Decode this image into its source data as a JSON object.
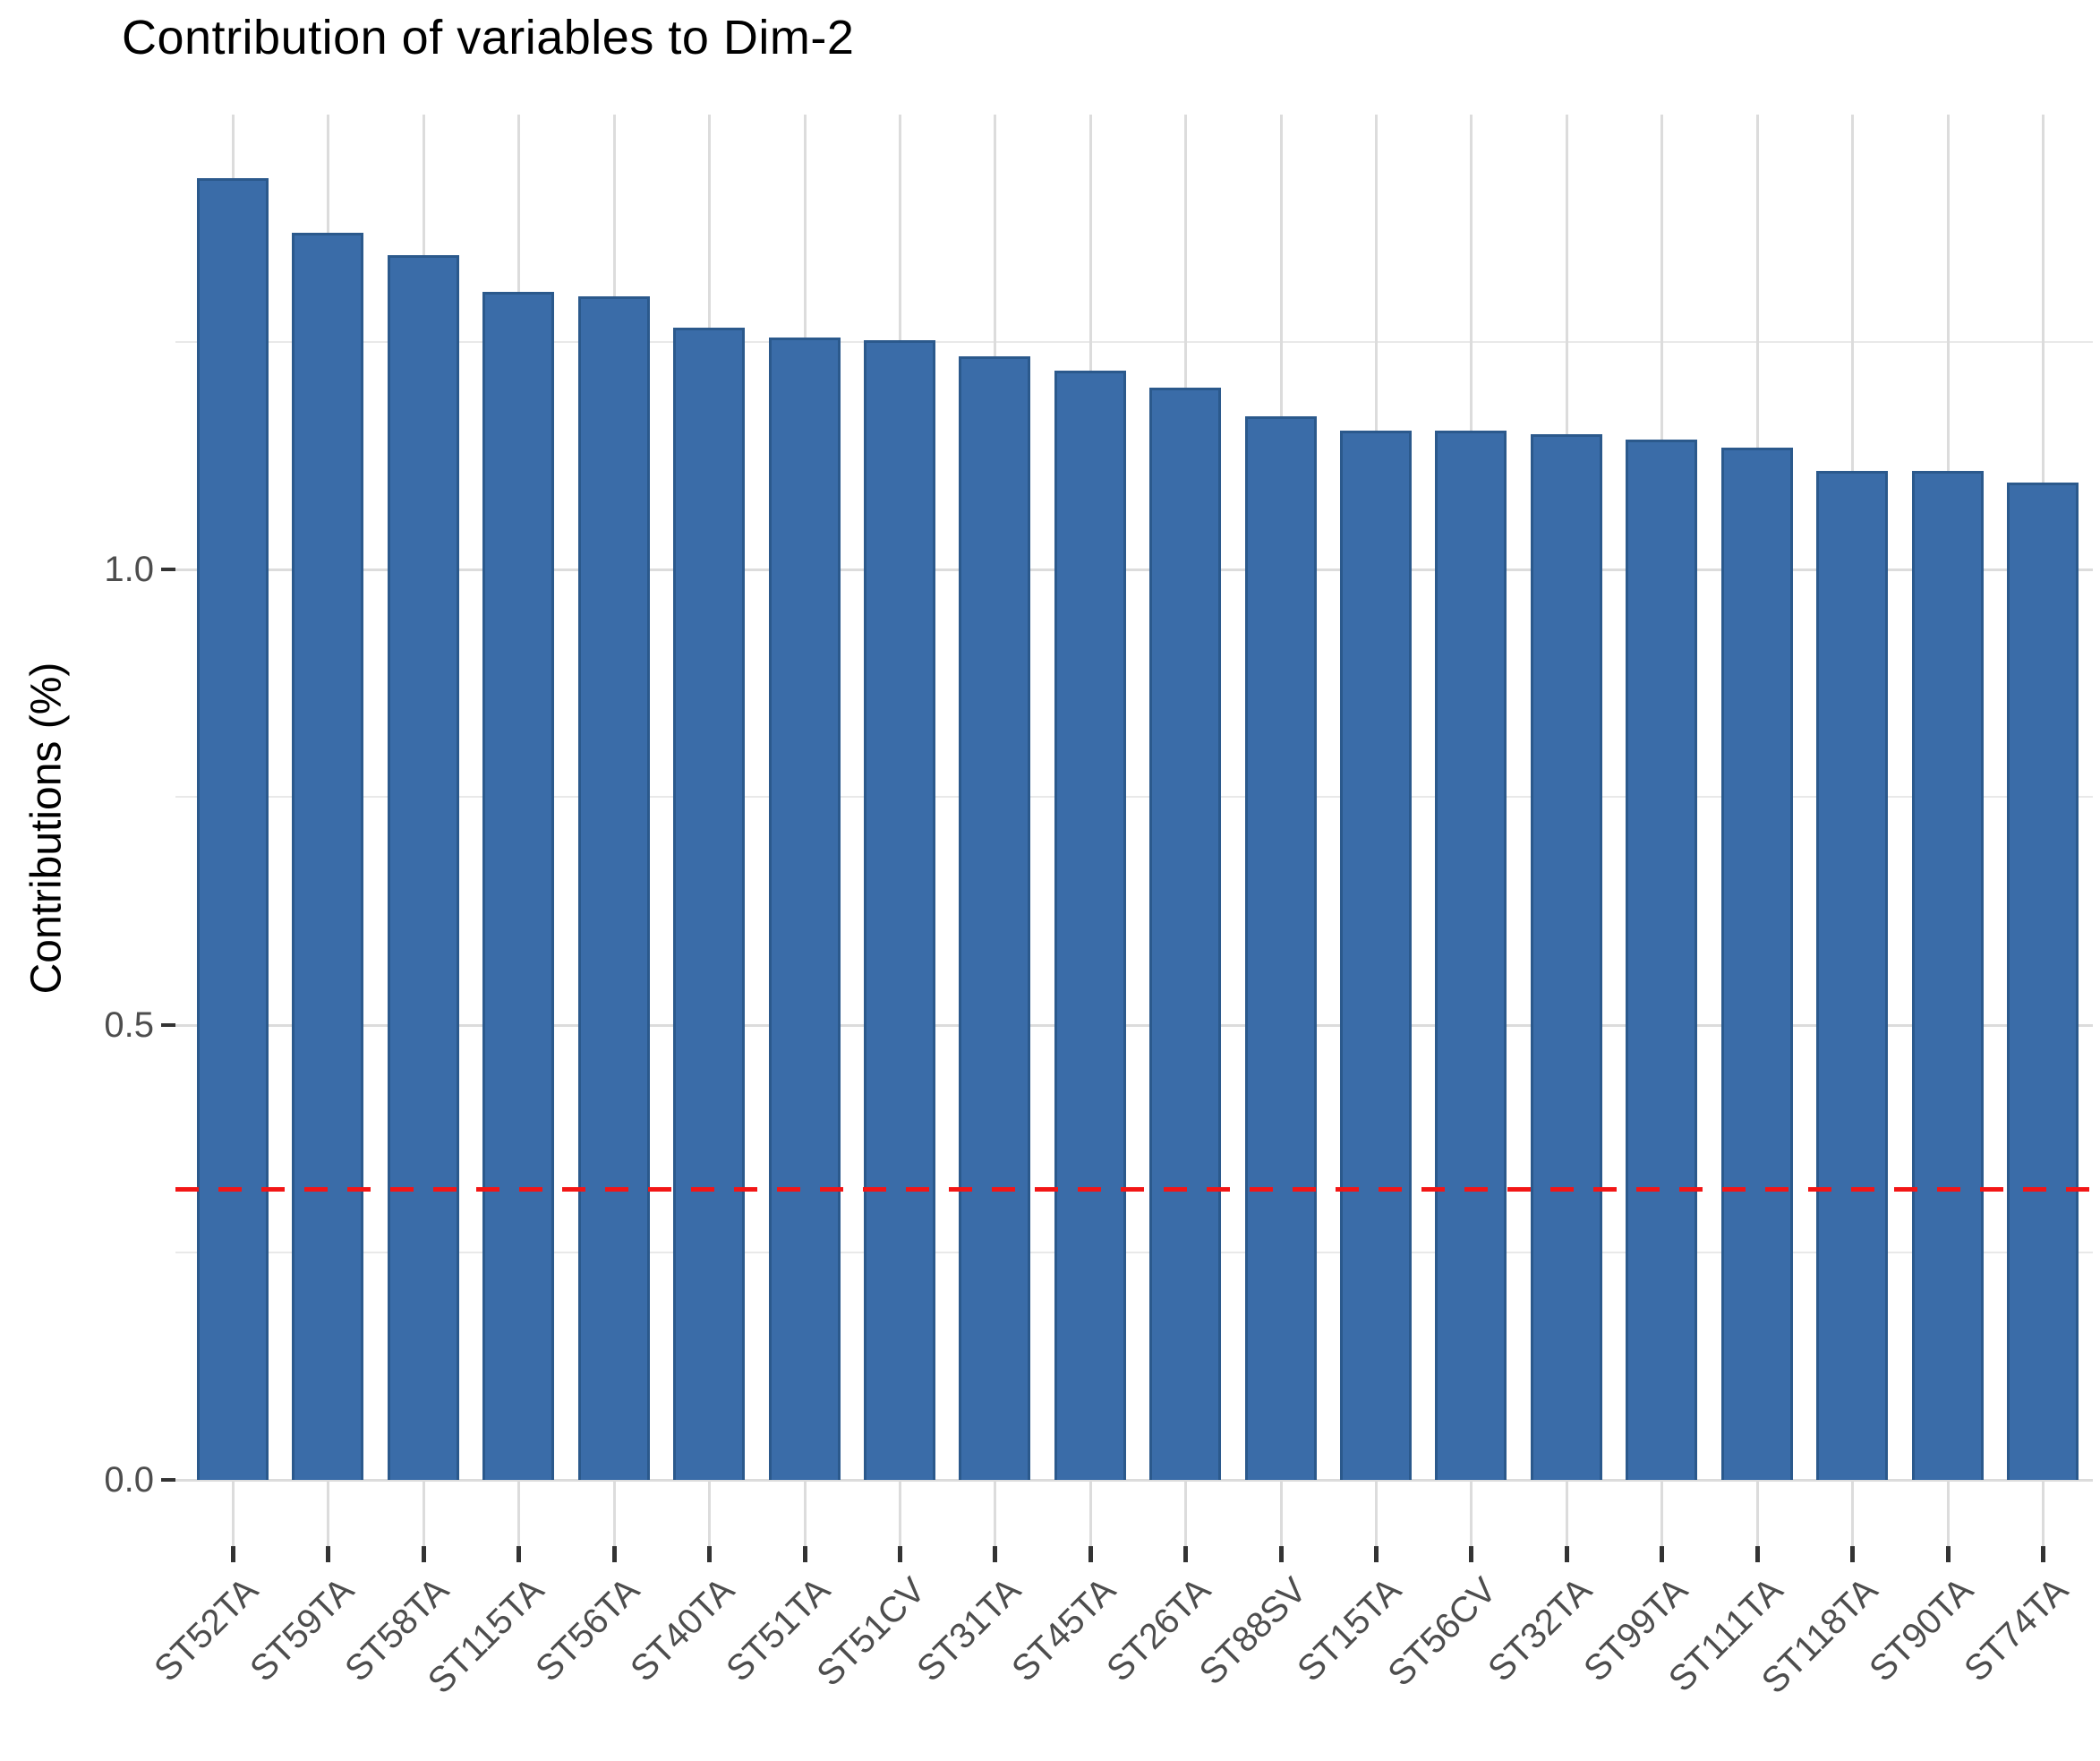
{
  "chart_data": {
    "type": "bar",
    "title": "Contribution of variables to Dim-2",
    "ylabel": "Contributions (%)",
    "xlabel": "",
    "categories": [
      "ST52TA",
      "ST59TA",
      "ST58TA",
      "ST115TA",
      "ST56TA",
      "ST40TA",
      "ST51TA",
      "ST51CV",
      "ST31TA",
      "ST45TA",
      "ST26TA",
      "ST88SV",
      "ST15TA",
      "ST56CV",
      "ST32TA",
      "ST99TA",
      "ST111TA",
      "ST118TA",
      "ST90TA",
      "ST74TA"
    ],
    "values": [
      1.43,
      1.37,
      1.345,
      1.305,
      1.3,
      1.265,
      1.255,
      1.252,
      1.234,
      1.218,
      1.2,
      1.168,
      1.152,
      1.152,
      1.148,
      1.143,
      1.134,
      1.108,
      1.108,
      1.095
    ],
    "y_axis": {
      "ticks": [
        {
          "value": 0,
          "label": "0.0"
        },
        {
          "value": 0.5,
          "label": "0.5"
        },
        {
          "value": 1,
          "label": "1.0"
        }
      ],
      "minor_ticks": [
        0.25,
        0.75,
        1.25
      ],
      "range": [
        -0.076,
        1.5
      ]
    },
    "reference_line": {
      "value": 0.32,
      "style": "dashed",
      "color": "#f21616"
    },
    "colors": {
      "bar_fill": "#3a6ca8",
      "bar_border": "#2b598c",
      "grid_major": "#dcdcdc",
      "grid_minor": "#e9e9e9",
      "axis_text": "#4d4d4d",
      "tick_mark": "#333333",
      "title_text": "#000000"
    },
    "grid": true,
    "legend": "none"
  }
}
